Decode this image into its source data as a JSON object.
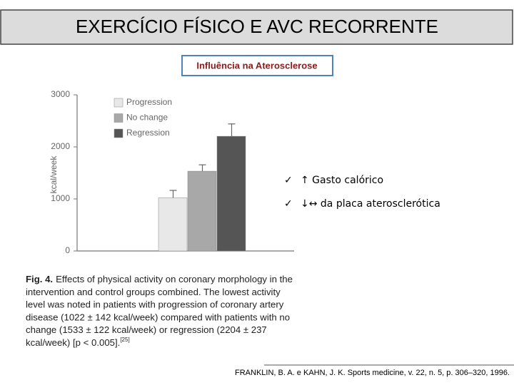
{
  "slide_title": "EXERCÍCIO FÍSICO E AVC RECORRENTE",
  "subtitle": "Influência na Aterosclerose",
  "chart_data": {
    "type": "bar",
    "ylabel": "kcal/week",
    "categories": [
      null
    ],
    "series": [
      {
        "name": "Progression",
        "color": "#e8e8e8",
        "values": [
          1022
        ],
        "errors": [
          142
        ]
      },
      {
        "name": "No change",
        "color": "#a8a8a8",
        "values": [
          1533
        ],
        "errors": [
          122
        ]
      },
      {
        "name": "Regression",
        "color": "#555555",
        "values": [
          2204
        ],
        "errors": [
          237
        ]
      }
    ],
    "ylim": [
      0,
      3000
    ],
    "yticks": [
      0,
      1000,
      2000,
      3000
    ],
    "legend": "top-left"
  },
  "caption": {
    "label": "Fig. 4.",
    "lines": [
      "Effects of physical activity on coronary morphology in the",
      "intervention and control groups combined. The lowest activity",
      "level was noted in patients with progression of coronary artery",
      "disease (1022 ± 142 kcal/week) compared with patients with no",
      "change (1533 ± 122 kcal/week) or regression (2204 ± 237",
      "kcal/week) [p < 0.005]."
    ],
    "ref": "[25]"
  },
  "bullets": [
    {
      "marker": "✓",
      "text": "↑ Gasto calórico"
    },
    {
      "marker": "✓",
      "text": "↓↔ da placa aterosclerótica"
    }
  ],
  "reference": "FRANKLIN, B. A. e KAHN, J. K. Sports medicine, v. 22, n. 5, p. 306–320, 1996."
}
